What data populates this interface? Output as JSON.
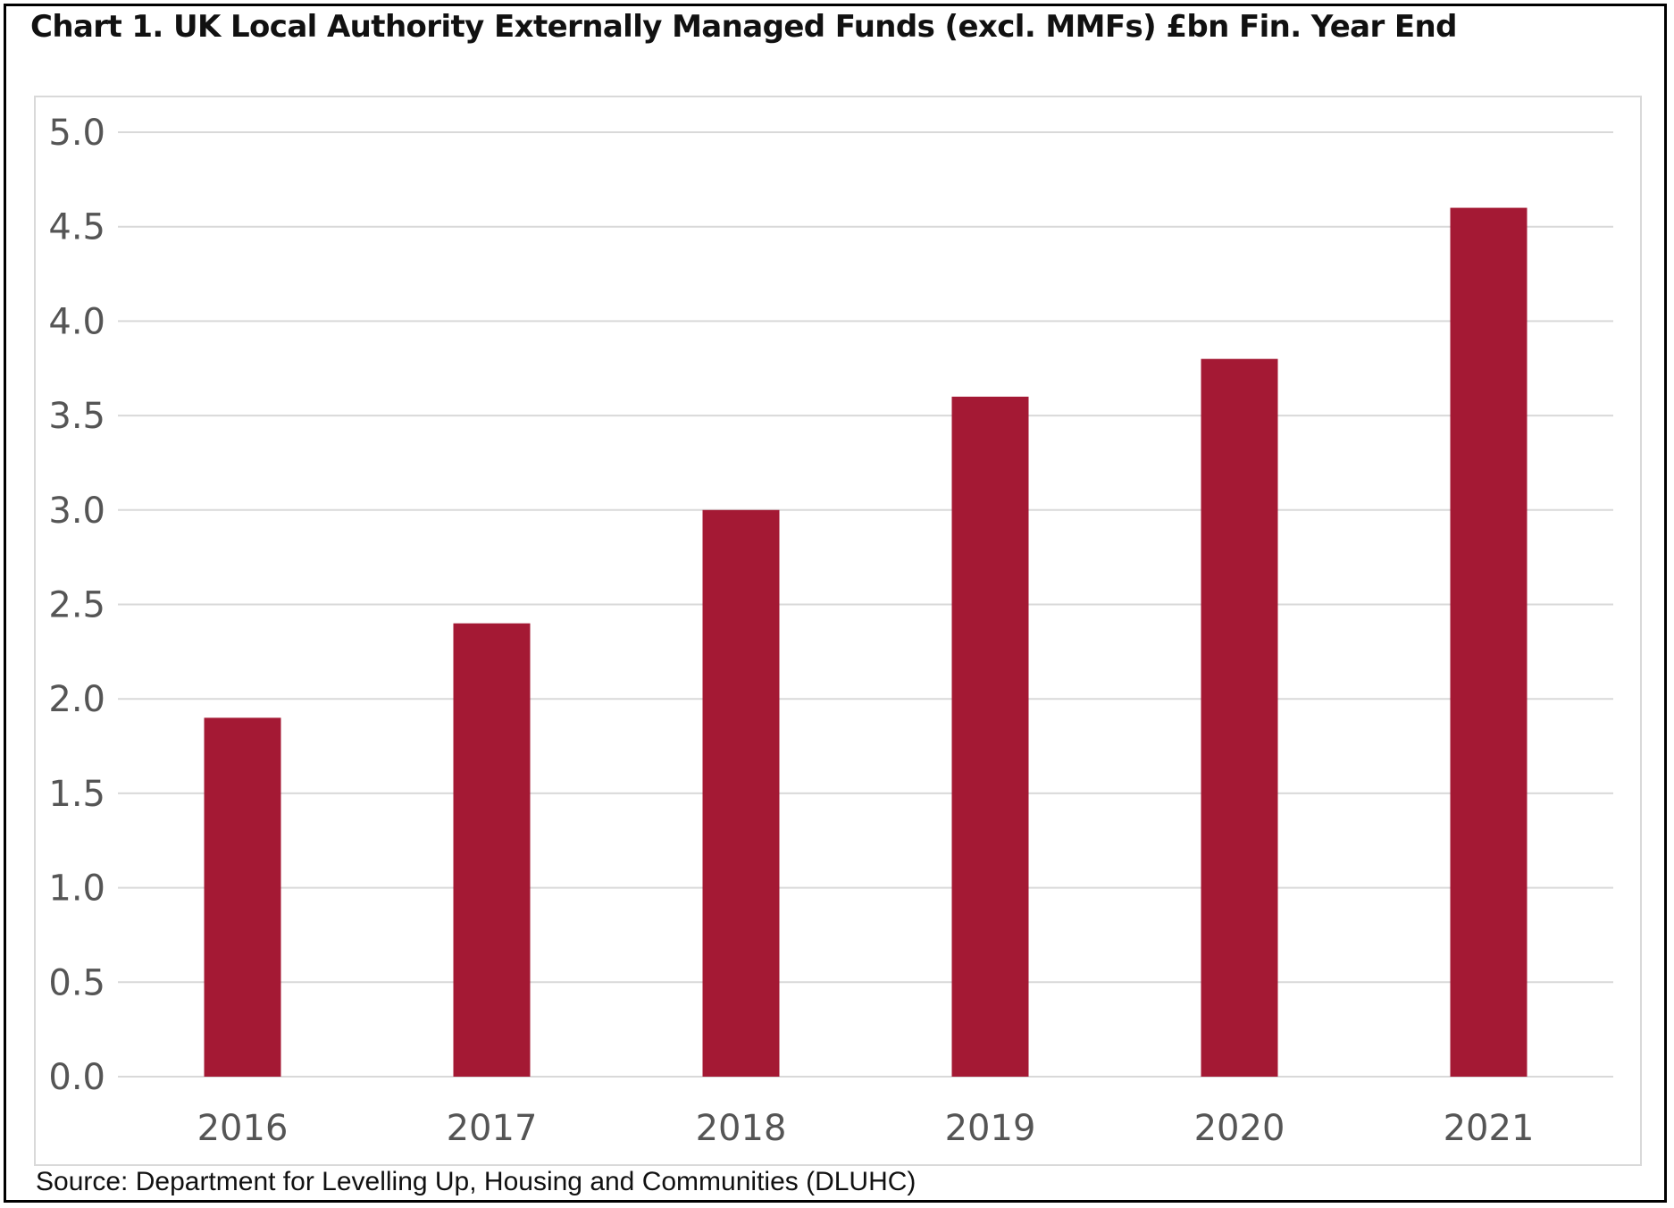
{
  "title": "Chart 1. UK Local Authority Externally Managed Funds (excl. MMFs) £bn Fin. Year End",
  "source": "Source: Department for Levelling Up, Housing and Communities (DLUHC)",
  "colors": {
    "bar": "#a41934",
    "grid": "#d9d9d9",
    "tick_text": "#555555"
  },
  "chart_data": {
    "type": "bar",
    "title": "Chart 1. UK Local Authority Externally Managed Funds (excl. MMFs) £bn Fin. Year End",
    "xlabel": "",
    "ylabel": "",
    "categories": [
      "2016",
      "2017",
      "2018",
      "2019",
      "2020",
      "2021"
    ],
    "values": [
      1.9,
      2.4,
      3.0,
      3.6,
      3.8,
      4.6
    ],
    "ylim": [
      0,
      5
    ],
    "yticks": [
      "0.0",
      "0.5",
      "1.0",
      "1.5",
      "2.0",
      "2.5",
      "3.0",
      "3.5",
      "4.0",
      "4.5",
      "5.0"
    ],
    "ytick_values": [
      0,
      0.5,
      1,
      1.5,
      2,
      2.5,
      3,
      3.5,
      4,
      4.5,
      5
    ],
    "grid": true,
    "legend": "none"
  }
}
